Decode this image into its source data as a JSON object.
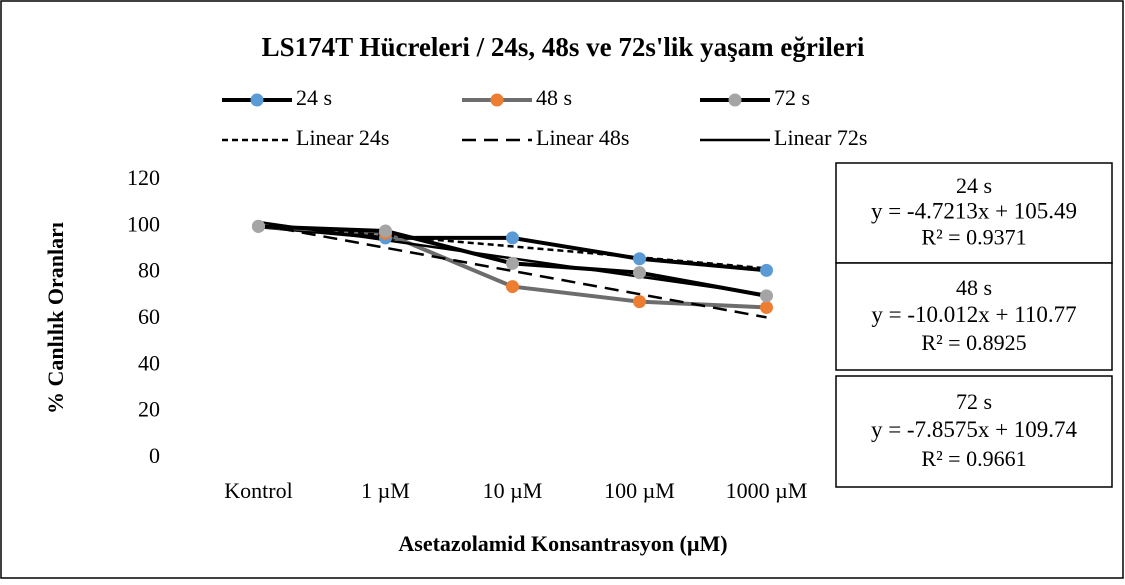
{
  "chart_data": {
    "type": "line",
    "title": "LS174T Hücreleri / 24s, 48s ve 72s'lik yaşam eğrileri",
    "xlabel": "Asetazolamid Konsantrasyon (µM)",
    "ylabel": "% Canlılık Oranları",
    "categories": [
      "Kontrol",
      "1 µM",
      "10 µM",
      "100 µM",
      "1000 µM"
    ],
    "series": [
      {
        "name": "24 s",
        "color": "#000000",
        "marker_color": "#5b9bd5",
        "values": [
          100,
          95,
          95,
          86,
          81
        ]
      },
      {
        "name": "48 s",
        "color": "#6d6d6d",
        "marker_color": "#ed7d31",
        "values": [
          100,
          97,
          74,
          67.5,
          65
        ]
      },
      {
        "name": "72 s",
        "color": "#000000",
        "marker_color": "#a5a5a5",
        "values": [
          100,
          98,
          84,
          80,
          70
        ]
      }
    ],
    "trendlines": [
      {
        "name": "Linear 24s",
        "line_style": "dotted",
        "slope": -4.7213,
        "intercept": 105.49,
        "r2": 0.9371,
        "equation_label": "y = -4.7213x + 105.49",
        "r2_label": "R² = 0.9371"
      },
      {
        "name": "Linear 48s",
        "line_style": "dashed",
        "slope": -10.012,
        "intercept": 110.77,
        "r2": 0.8925,
        "equation_label": "y = -10.012x + 110.77",
        "r2_label": "R² = 0.8925"
      },
      {
        "name": "Linear 72s",
        "line_style": "solid",
        "slope": -7.8575,
        "intercept": 109.74,
        "r2": 0.9661,
        "equation_label": "y = -7.8575x + 109.74",
        "r2_label": "R² = 0.9661"
      }
    ],
    "ylim": [
      0,
      120
    ],
    "yticks": [
      0,
      20,
      40,
      60,
      80,
      100,
      120
    ],
    "grid": false
  }
}
